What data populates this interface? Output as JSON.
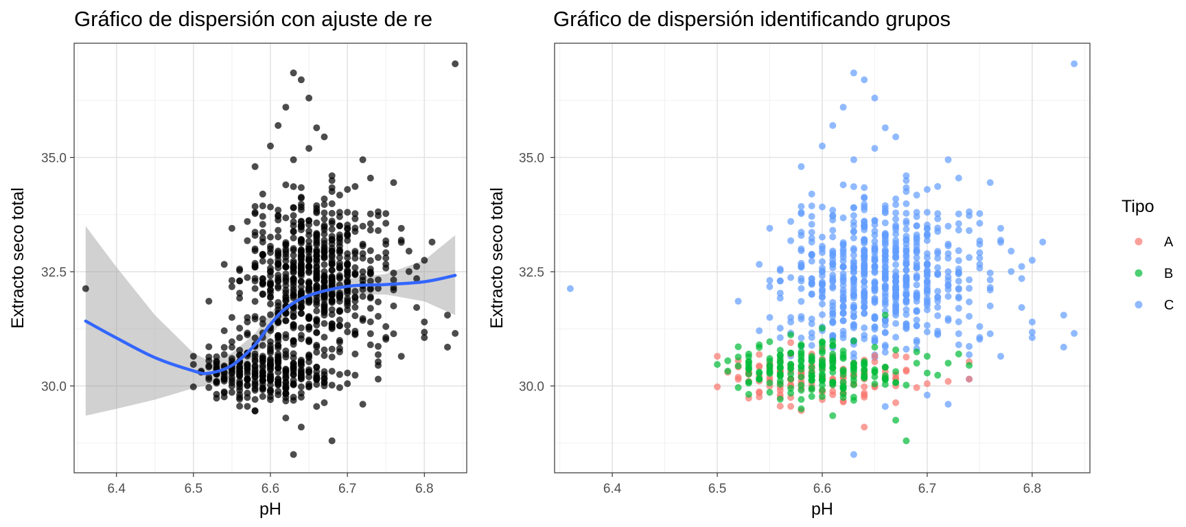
{
  "chart_data": [
    {
      "type": "scatter",
      "title": "Gráfico de dispersión con ajuste de re",
      "xlabel": "pH",
      "ylabel": "Extracto seco total",
      "xlim": [
        6.345,
        6.855
      ],
      "ylim": [
        28.1,
        37.5
      ],
      "x_ticks": [
        6.4,
        6.5,
        6.6,
        6.7,
        6.8
      ],
      "x_tick_labels": [
        "6.4",
        "6.5",
        "6.6",
        "6.7",
        "6.8"
      ],
      "y_ticks": [
        30.0,
        32.5,
        35.0
      ],
      "y_tick_labels": [
        "30.0",
        "32.5",
        "35.0"
      ],
      "grid": true,
      "point_color": "#000000",
      "point_alpha": 0.7,
      "smooth": {
        "color": "#3366FF",
        "band_color": "#999999",
        "x": [
          6.36,
          6.4,
          6.45,
          6.5,
          6.52,
          6.55,
          6.58,
          6.6,
          6.62,
          6.65,
          6.7,
          6.75,
          6.8,
          6.84
        ],
        "y": [
          31.42,
          31.05,
          30.62,
          30.33,
          30.28,
          30.45,
          30.9,
          31.35,
          31.7,
          31.98,
          32.18,
          32.22,
          32.28,
          32.42
        ],
        "ymin": [
          29.35,
          29.5,
          29.7,
          29.95,
          30.02,
          30.2,
          30.65,
          31.1,
          31.5,
          31.8,
          32.0,
          32.0,
          31.85,
          31.55
        ],
        "ymax": [
          33.5,
          32.6,
          31.55,
          30.72,
          30.55,
          30.72,
          31.15,
          31.6,
          31.9,
          32.15,
          32.35,
          32.45,
          32.75,
          33.3
        ]
      },
      "points": [
        [
          6.36,
          32.13
        ],
        [
          6.84,
          37.05
        ],
        [
          6.63,
          36.85
        ],
        [
          6.64,
          36.7
        ],
        [
          6.65,
          36.3
        ],
        [
          6.62,
          36.1
        ],
        [
          6.61,
          35.7
        ],
        [
          6.66,
          35.65
        ],
        [
          6.67,
          35.45
        ],
        [
          6.6,
          35.25
        ],
        [
          6.65,
          35.2
        ],
        [
          6.58,
          34.8
        ],
        [
          6.72,
          34.95
        ],
        [
          6.73,
          34.55
        ],
        [
          6.76,
          34.45
        ],
        [
          6.63,
          34.95
        ],
        [
          6.68,
          34.6
        ],
        [
          6.62,
          34.4
        ],
        [
          6.7,
          34.3
        ],
        [
          6.59,
          34.2
        ],
        [
          6.57,
          33.6
        ],
        [
          6.55,
          33.45
        ],
        [
          6.77,
          33.45
        ],
        [
          6.75,
          33.1
        ],
        [
          6.78,
          32.95
        ],
        [
          6.8,
          32.75
        ],
        [
          6.81,
          33.15
        ],
        [
          6.79,
          32.35
        ],
        [
          6.8,
          31.4
        ],
        [
          6.83,
          31.55
        ],
        [
          6.84,
          31.15
        ],
        [
          6.83,
          30.85
        ],
        [
          6.76,
          31.75
        ],
        [
          6.77,
          30.65
        ],
        [
          6.74,
          30.45
        ],
        [
          6.74,
          30.15
        ],
        [
          6.72,
          29.6
        ],
        [
          6.7,
          30.05
        ],
        [
          6.68,
          28.8
        ],
        [
          6.63,
          28.5
        ],
        [
          6.64,
          29.1
        ],
        [
          6.62,
          29.3
        ],
        [
          6.66,
          29.55
        ],
        [
          6.6,
          29.7
        ],
        [
          6.58,
          29.45
        ],
        [
          6.56,
          29.75
        ],
        [
          6.54,
          29.85
        ],
        [
          6.51,
          30.3
        ],
        [
          6.5,
          30.65
        ],
        [
          6.5,
          29.98
        ],
        [
          6.52,
          30.55
        ],
        [
          6.53,
          30.1
        ],
        [
          6.55,
          30.85
        ],
        [
          6.55,
          31.5
        ],
        [
          6.57,
          31.4
        ],
        [
          6.56,
          32.3
        ],
        [
          6.58,
          32.6
        ],
        [
          6.6,
          33.0
        ],
        [
          6.61,
          31.1
        ],
        [
          6.69,
          30.25
        ],
        [
          6.71,
          30.7
        ],
        [
          6.67,
          31.55
        ],
        [
          6.69,
          33.8
        ],
        [
          6.71,
          32.9
        ],
        [
          6.73,
          31.95
        ],
        [
          6.72,
          32.5
        ],
        [
          6.74,
          33.4
        ],
        [
          6.75,
          32.8
        ],
        [
          6.76,
          32.1
        ],
        [
          6.75,
          31.3
        ],
        [
          6.73,
          30.9
        ]
      ]
    },
    {
      "type": "scatter",
      "title": "Gráfico de dispersión identificando grupos",
      "xlabel": "pH",
      "ylabel": "Extracto seco total",
      "xlim": [
        6.345,
        6.855
      ],
      "ylim": [
        28.1,
        37.5
      ],
      "x_ticks": [
        6.4,
        6.5,
        6.6,
        6.7,
        6.8
      ],
      "x_tick_labels": [
        "6.4",
        "6.5",
        "6.6",
        "6.7",
        "6.8"
      ],
      "y_ticks": [
        30.0,
        32.5,
        35.0
      ],
      "y_tick_labels": [
        "30.0",
        "32.5",
        "35.0"
      ],
      "grid": true,
      "point_alpha": 0.7,
      "legend": {
        "title": "Tipo",
        "position": "right",
        "entries": [
          {
            "label": "A",
            "color": "#F8766D"
          },
          {
            "label": "B",
            "color": "#00BA38"
          },
          {
            "label": "C",
            "color": "#619CFF"
          }
        ]
      },
      "series": [
        {
          "name": "A",
          "color": "#F8766D",
          "points": [
            [
              6.5,
              30.65
            ],
            [
              6.5,
              29.98
            ],
            [
              6.51,
              30.3
            ],
            [
              6.52,
              30.55
            ],
            [
              6.53,
              30.1
            ],
            [
              6.54,
              29.85
            ],
            [
              6.56,
              29.75
            ],
            [
              6.57,
              30.95
            ],
            [
              6.58,
              30.2
            ],
            [
              6.6,
              29.7
            ],
            [
              6.62,
              29.65
            ],
            [
              6.64,
              29.8
            ],
            [
              6.64,
              29.1
            ],
            [
              6.66,
              30.4
            ],
            [
              6.68,
              30.35
            ],
            [
              6.7,
              30.05
            ],
            [
              6.72,
              30.1
            ],
            [
              6.74,
              30.15
            ],
            [
              6.55,
              30.45
            ],
            [
              6.59,
              30.7
            ],
            [
              6.63,
              30.5
            ]
          ]
        },
        {
          "name": "B",
          "color": "#00BA38",
          "points": [
            [
              6.51,
              30.55
            ],
            [
              6.53,
              30.7
            ],
            [
              6.54,
              30.9
            ],
            [
              6.55,
              30.3
            ],
            [
              6.56,
              30.6
            ],
            [
              6.57,
              29.95
            ],
            [
              6.58,
              29.5
            ],
            [
              6.59,
              30.4
            ],
            [
              6.6,
              30.95
            ],
            [
              6.61,
              29.35
            ],
            [
              6.62,
              30.6
            ],
            [
              6.63,
              30.2
            ],
            [
              6.65,
              30.85
            ],
            [
              6.66,
              31.55
            ],
            [
              6.67,
              29.25
            ],
            [
              6.68,
              28.8
            ],
            [
              6.69,
              30.5
            ],
            [
              6.7,
              30.65
            ],
            [
              6.72,
              30.5
            ],
            [
              6.73,
              30.7
            ],
            [
              6.74,
              30.45
            ],
            [
              6.64,
              30.35
            ],
            [
              6.58,
              30.75
            ]
          ]
        },
        {
          "name": "C",
          "color": "#619CFF",
          "points": [
            [
              6.36,
              32.13
            ],
            [
              6.84,
              37.05
            ],
            [
              6.63,
              36.85
            ],
            [
              6.64,
              36.7
            ],
            [
              6.65,
              36.3
            ],
            [
              6.62,
              36.1
            ],
            [
              6.61,
              35.7
            ],
            [
              6.66,
              35.65
            ],
            [
              6.67,
              35.45
            ],
            [
              6.6,
              35.25
            ],
            [
              6.65,
              35.2
            ],
            [
              6.58,
              34.8
            ],
            [
              6.72,
              34.95
            ],
            [
              6.73,
              34.55
            ],
            [
              6.76,
              34.45
            ],
            [
              6.63,
              34.95
            ],
            [
              6.68,
              34.6
            ],
            [
              6.62,
              34.4
            ],
            [
              6.7,
              34.3
            ],
            [
              6.59,
              34.2
            ],
            [
              6.57,
              33.6
            ],
            [
              6.55,
              33.45
            ],
            [
              6.77,
              33.45
            ],
            [
              6.75,
              33.1
            ],
            [
              6.78,
              32.95
            ],
            [
              6.8,
              32.75
            ],
            [
              6.81,
              33.15
            ],
            [
              6.79,
              32.35
            ],
            [
              6.8,
              31.4
            ],
            [
              6.83,
              31.55
            ],
            [
              6.84,
              31.15
            ],
            [
              6.83,
              30.85
            ],
            [
              6.76,
              31.75
            ],
            [
              6.77,
              30.65
            ],
            [
              6.74,
              30.15
            ],
            [
              6.72,
              29.6
            ],
            [
              6.63,
              28.5
            ],
            [
              6.56,
              32.3
            ],
            [
              6.58,
              32.6
            ],
            [
              6.6,
              33.0
            ],
            [
              6.61,
              31.1
            ],
            [
              6.67,
              31.55
            ],
            [
              6.69,
              33.8
            ],
            [
              6.71,
              32.9
            ],
            [
              6.73,
              31.95
            ],
            [
              6.72,
              32.5
            ],
            [
              6.74,
              33.4
            ],
            [
              6.75,
              32.8
            ],
            [
              6.76,
              32.1
            ],
            [
              6.75,
              31.3
            ],
            [
              6.73,
              30.9
            ],
            [
              6.55,
              31.5
            ],
            [
              6.57,
              31.4
            ],
            [
              6.66,
              29.55
            ],
            [
              6.7,
              29.8
            ],
            [
              6.62,
              31.2
            ],
            [
              6.65,
              31.05
            ]
          ]
        }
      ]
    }
  ]
}
